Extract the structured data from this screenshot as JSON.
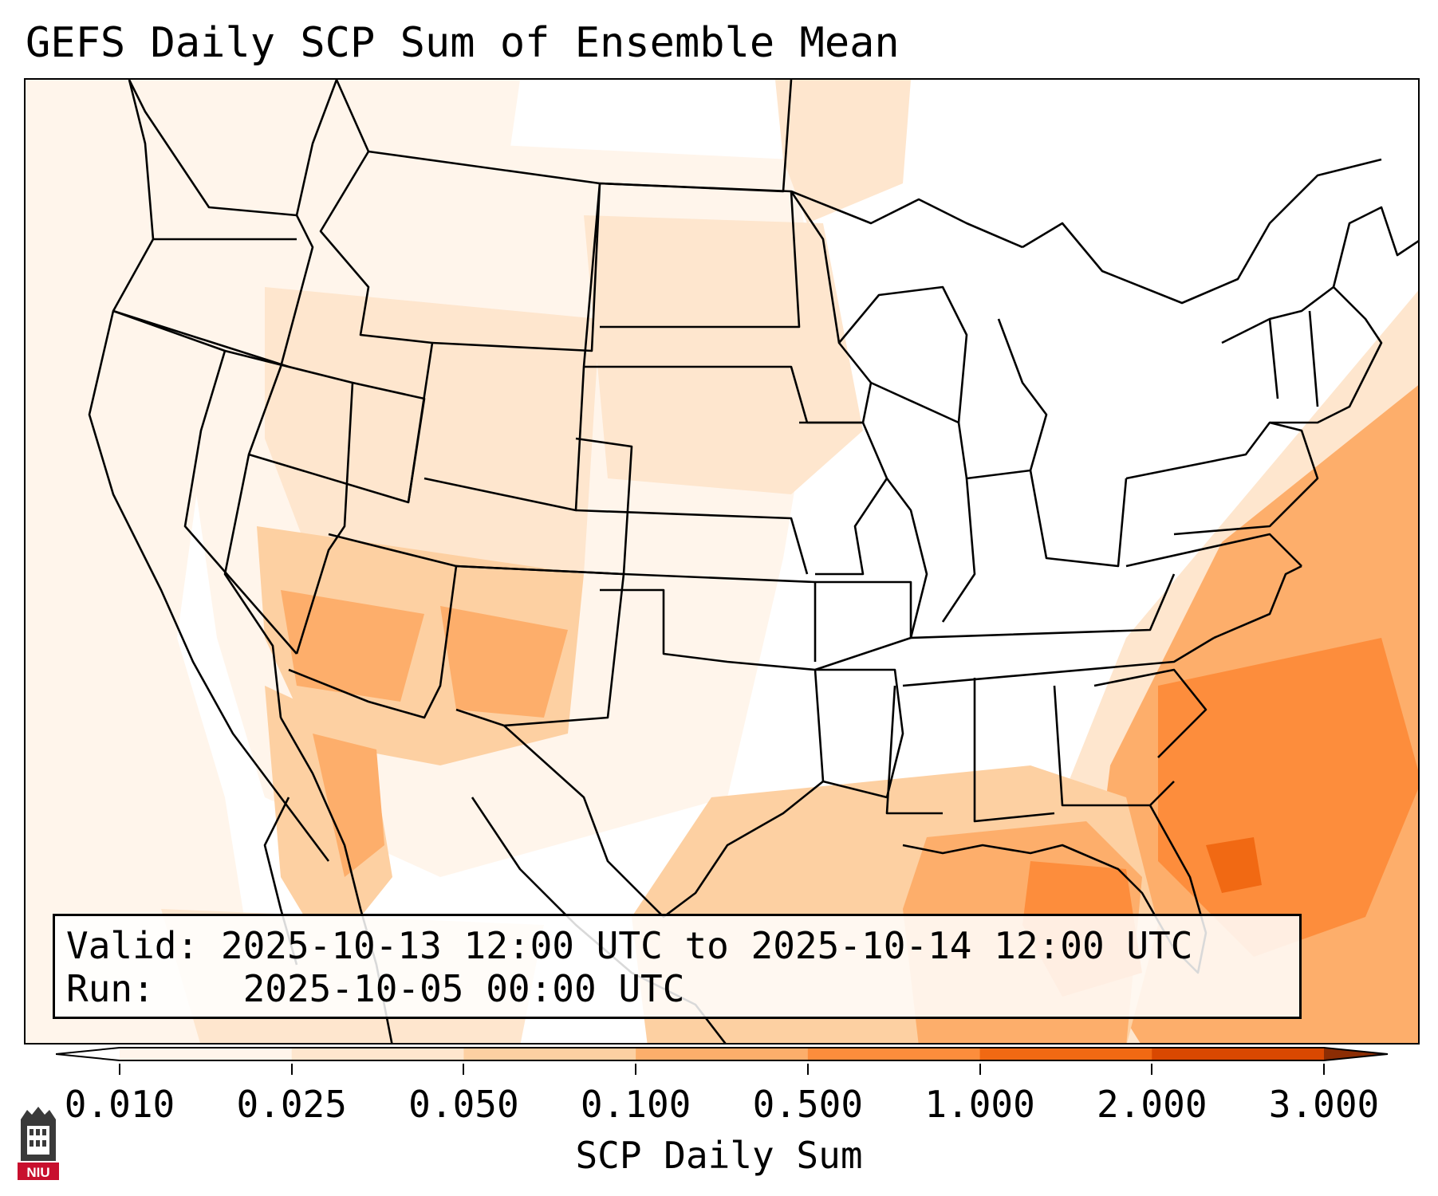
{
  "title": "GEFS Daily SCP Sum of Ensemble Mean",
  "info": {
    "valid_label": "Valid:",
    "valid_value": "2025-10-13 12:00 UTC to 2025-10-14 12:00 UTC",
    "run_label": "Run:",
    "run_value": "2025-10-05 00:00 UTC"
  },
  "colorbar": {
    "label": "SCP Daily Sum",
    "ticks": [
      "0.010",
      "0.025",
      "0.050",
      "0.100",
      "0.500",
      "1.000",
      "2.000",
      "3.000"
    ],
    "colors": [
      "#fff5eb",
      "#fee6ce",
      "#fdd0a2",
      "#fdae6b",
      "#fd8d3c",
      "#f16913",
      "#d94801"
    ],
    "under_color": "#ffffff",
    "over_color": "#8c2d04",
    "extend": "both"
  },
  "logo": {
    "text": "NIU",
    "icon": "university-tower-icon",
    "accent": "#c8102e"
  }
}
